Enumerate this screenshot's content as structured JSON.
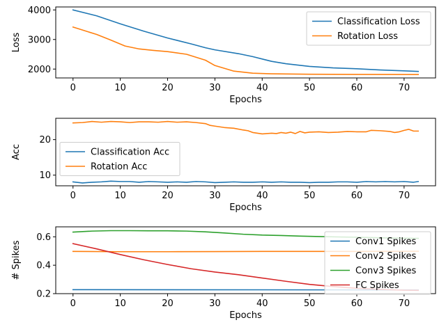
{
  "chart_data": [
    {
      "type": "line",
      "title": "",
      "xlabel": "Epochs",
      "ylabel": "Loss",
      "xlim": [
        -3.65,
        76.65
      ],
      "ylim": [
        1700,
        4100
      ],
      "xticks": [
        0,
        10,
        20,
        30,
        40,
        50,
        60,
        70
      ],
      "yticks": [
        2000,
        3000,
        4000
      ],
      "legend": "upper right",
      "grid": false,
      "series": [
        {
          "name": "Classification Loss",
          "color": "#1f77b4",
          "x": [
            0,
            5,
            10,
            15,
            20,
            25,
            28,
            30,
            35,
            38,
            42,
            45,
            50,
            55,
            60,
            65,
            70,
            73
          ],
          "y": [
            4000,
            3800,
            3530,
            3280,
            3050,
            2850,
            2720,
            2650,
            2520,
            2420,
            2260,
            2180,
            2090,
            2040,
            2010,
            1970,
            1940,
            1920
          ]
        },
        {
          "name": "Rotation Loss",
          "color": "#ff7f0e",
          "x": [
            0,
            2,
            5,
            8,
            11,
            14,
            17,
            20,
            24,
            28,
            30,
            34,
            38,
            42,
            50,
            60,
            73
          ],
          "y": [
            3420,
            3320,
            3170,
            2980,
            2780,
            2680,
            2630,
            2590,
            2500,
            2300,
            2120,
            1930,
            1860,
            1840,
            1825,
            1820,
            1815
          ]
        }
      ]
    },
    {
      "type": "line",
      "title": "",
      "xlabel": "Epochs",
      "ylabel": "Acc",
      "xlim": [
        -3.65,
        76.65
      ],
      "ylim": [
        7,
        26
      ],
      "xticks": [
        0,
        10,
        20,
        30,
        40,
        50,
        60,
        70
      ],
      "yticks": [
        10,
        20
      ],
      "legend": "center left",
      "grid": false,
      "series": [
        {
          "name": "Classification Acc",
          "color": "#1f77b4",
          "x": [
            0,
            2,
            4,
            6,
            8,
            10,
            12,
            14,
            16,
            18,
            20,
            22,
            24,
            26,
            28,
            30,
            32,
            34,
            36,
            38,
            40,
            42,
            44,
            46,
            48,
            50,
            52,
            54,
            56,
            58,
            60,
            62,
            64,
            66,
            68,
            70,
            72,
            73
          ],
          "y": [
            8.1,
            7.8,
            8.0,
            8.1,
            8.3,
            8.2,
            8.2,
            8.0,
            8.2,
            8.1,
            8.0,
            8.1,
            8.0,
            8.2,
            8.1,
            7.9,
            8.0,
            8.1,
            8.0,
            8.0,
            8.1,
            8.0,
            8.1,
            8.0,
            8.0,
            7.9,
            8.0,
            8.0,
            8.1,
            8.1,
            8.0,
            8.2,
            8.1,
            8.2,
            8.1,
            8.2,
            8.0,
            8.2
          ]
        },
        {
          "name": "Rotation Acc",
          "color": "#ff7f0e",
          "x": [
            0,
            2,
            4,
            6,
            8,
            10,
            12,
            14,
            16,
            18,
            20,
            22,
            24,
            26,
            28,
            29,
            30,
            32,
            34,
            36,
            37,
            38,
            40,
            42,
            43,
            44,
            45,
            46,
            47,
            48,
            49,
            50,
            52,
            54,
            56,
            58,
            60,
            62,
            63,
            65,
            67,
            68,
            69,
            70,
            71,
            72,
            73
          ],
          "y": [
            24.7,
            24.8,
            25.1,
            24.9,
            25.1,
            25.0,
            24.8,
            25.0,
            25.0,
            24.9,
            25.1,
            24.9,
            25.0,
            24.8,
            24.5,
            24.0,
            23.8,
            23.4,
            23.2,
            22.7,
            22.5,
            22.0,
            21.6,
            21.8,
            21.7,
            22.0,
            21.8,
            22.1,
            21.7,
            22.3,
            21.9,
            22.1,
            22.2,
            22.0,
            22.1,
            22.3,
            22.2,
            22.2,
            22.6,
            22.5,
            22.3,
            22.0,
            22.2,
            22.6,
            22.9,
            22.4,
            22.4
          ]
        }
      ]
    },
    {
      "type": "line",
      "title": "",
      "xlabel": "Epochs",
      "ylabel": "# Spikes",
      "xlim": [
        -3.65,
        76.65
      ],
      "ylim": [
        0.2,
        0.67
      ],
      "xticks": [
        0,
        10,
        20,
        30,
        40,
        50,
        60,
        70
      ],
      "yticks": [
        0.2,
        0.4,
        0.6
      ],
      "legend": "upper right",
      "grid": false,
      "series": [
        {
          "name": "Conv1 Spikes",
          "color": "#1f77b4",
          "x": [
            0,
            73
          ],
          "y": [
            0.228,
            0.226
          ]
        },
        {
          "name": "Conv2 Spikes",
          "color": "#ff7f0e",
          "x": [
            0,
            10,
            20,
            30,
            40,
            50,
            60,
            73
          ],
          "y": [
            0.497,
            0.495,
            0.495,
            0.496,
            0.497,
            0.497,
            0.497,
            0.498
          ]
        },
        {
          "name": "Conv3 Spikes",
          "color": "#2ca02c",
          "x": [
            0,
            4,
            8,
            12,
            16,
            20,
            24,
            28,
            32,
            36,
            40,
            44,
            48,
            52,
            56,
            60,
            64,
            68,
            73
          ],
          "y": [
            0.633,
            0.64,
            0.643,
            0.643,
            0.642,
            0.642,
            0.64,
            0.635,
            0.627,
            0.618,
            0.612,
            0.609,
            0.605,
            0.602,
            0.599,
            0.597,
            0.594,
            0.591,
            0.589
          ]
        },
        {
          "name": "FC Spikes",
          "color": "#d62728",
          "x": [
            0,
            5,
            10,
            15,
            20,
            25,
            30,
            35,
            40,
            45,
            50,
            55,
            60,
            65,
            70,
            73
          ],
          "y": [
            0.552,
            0.515,
            0.475,
            0.438,
            0.405,
            0.375,
            0.352,
            0.333,
            0.31,
            0.287,
            0.265,
            0.25,
            0.238,
            0.23,
            0.224,
            0.223
          ]
        }
      ]
    }
  ]
}
